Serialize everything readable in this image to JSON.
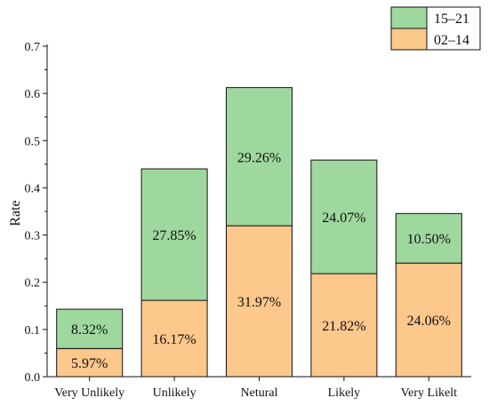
{
  "chart_data": {
    "type": "bar",
    "stacked": true,
    "categories": [
      "Very Unlikely",
      "Unlikely",
      "Netural",
      "Likely",
      "Very Likelt"
    ],
    "series": [
      {
        "name": "02–14",
        "values": [
          0.0597,
          0.1617,
          0.3197,
          0.2182,
          0.2406
        ],
        "labels": [
          "5.97%",
          "16.17%",
          "31.97%",
          "21.82%",
          "24.06%"
        ],
        "color": "#fcc88c"
      },
      {
        "name": "15–21",
        "values": [
          0.0832,
          0.2785,
          0.2926,
          0.2407,
          0.105
        ],
        "labels": [
          "8.32%",
          "27.85%",
          "29.26%",
          "24.07%",
          "10.50%"
        ],
        "color": "#9fd89f"
      }
    ],
    "xlabel": "",
    "ylabel": "Rate",
    "ylim": [
      0,
      0.7
    ],
    "yticks": [
      "0.0",
      "0.1",
      "0.2",
      "0.3",
      "0.4",
      "0.5",
      "0.6",
      "0.7"
    ],
    "grid": false,
    "legend_position": "top-right"
  }
}
